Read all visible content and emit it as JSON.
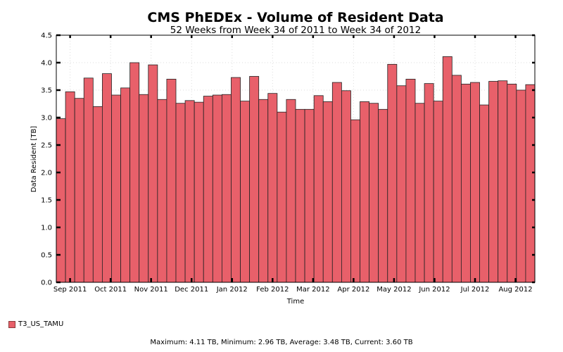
{
  "chart_data": {
    "type": "bar",
    "title": "CMS PhEDEx - Volume of Resident Data",
    "subtitle": "52 Weeks from Week 34 of 2011 to Week 34 of 2012",
    "xlabel": "Time",
    "ylabel": "Data Resident [TB]",
    "ylim": [
      0,
      4.5
    ],
    "yticks": [
      "0.0",
      "0.5",
      "1.0",
      "1.5",
      "2.0",
      "2.5",
      "3.0",
      "3.5",
      "4.0",
      "4.5"
    ],
    "ytick_values": [
      0,
      0.5,
      1.0,
      1.5,
      2.0,
      2.5,
      3.0,
      3.5,
      4.0,
      4.5
    ],
    "xtick_labels": [
      "Sep 2011",
      "Oct 2011",
      "Nov 2011",
      "Dec 2011",
      "Jan 2012",
      "Feb 2012",
      "Mar 2012",
      "Apr 2012",
      "May 2012",
      "Jun 2012",
      "Jul 2012",
      "Aug 2012"
    ],
    "xtick_week_index": [
      1,
      5.4,
      9.8,
      14.2,
      18.6,
      23,
      27.4,
      31.8,
      36.2,
      40.6,
      45,
      49.4
    ],
    "grid": true,
    "bar_color": "#e8606a",
    "series": [
      {
        "name": "T3_US_TAMU",
        "values": [
          2.98,
          3.47,
          3.35,
          3.72,
          3.2,
          3.8,
          3.41,
          3.54,
          4.0,
          3.42,
          3.96,
          3.33,
          3.7,
          3.26,
          3.31,
          3.28,
          3.39,
          3.41,
          3.42,
          3.73,
          3.3,
          3.75,
          3.33,
          3.44,
          3.1,
          3.33,
          3.15,
          3.15,
          3.4,
          3.29,
          3.64,
          3.49,
          2.96,
          3.29,
          3.26,
          3.15,
          3.97,
          3.58,
          3.7,
          3.26,
          3.62,
          3.3,
          4.11,
          3.77,
          3.61,
          3.64,
          3.23,
          3.66,
          3.67,
          3.61,
          3.5,
          3.6
        ]
      }
    ]
  },
  "legend": {
    "label": "T3_US_TAMU",
    "color": "#e8606a"
  },
  "footer": {
    "text": "Maximum: 4.11 TB, Minimum: 2.96 TB, Average: 3.48 TB, Current: 3.60 TB"
  }
}
